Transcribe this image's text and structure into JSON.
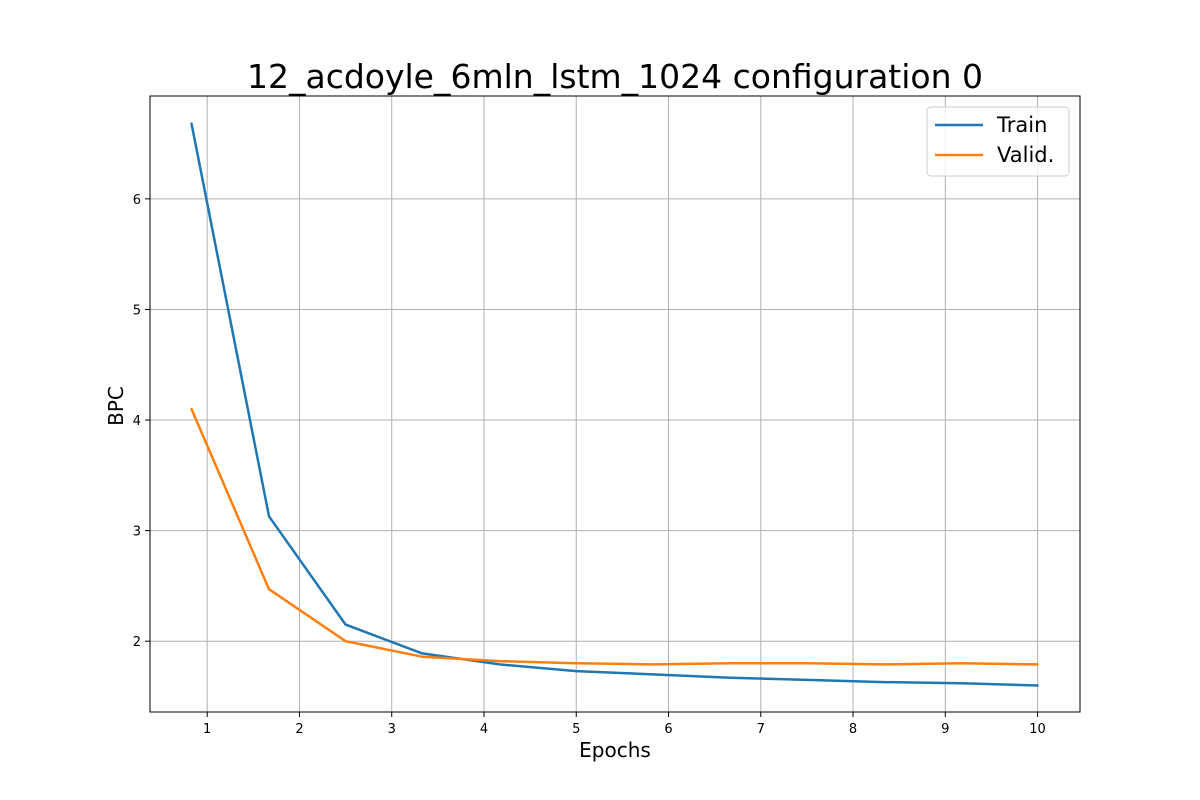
{
  "chart_data": {
    "type": "line",
    "title": "12_acdoyle_6mln_lstm_1024 configuration 0",
    "xlabel": "Epochs",
    "ylabel": "BPC",
    "xlim": [
      0.38,
      10.46
    ],
    "ylim": [
      1.36,
      6.93
    ],
    "xticks": [
      1,
      2,
      3,
      4,
      5,
      6,
      7,
      8,
      9,
      10
    ],
    "yticks": [
      2,
      3,
      4,
      5,
      6
    ],
    "grid": true,
    "legend_position": "top-right",
    "series": [
      {
        "name": "Train",
        "color": "#1f77b4",
        "x": [
          0.83,
          1.67,
          2.5,
          3.33,
          4.17,
          5.0,
          5.83,
          6.67,
          7.5,
          8.33,
          9.17,
          10.0
        ],
        "y": [
          6.68,
          3.13,
          2.15,
          1.89,
          1.79,
          1.73,
          1.7,
          1.67,
          1.65,
          1.63,
          1.62,
          1.6
        ]
      },
      {
        "name": "Valid.",
        "color": "#ff7f0e",
        "x": [
          0.83,
          1.67,
          2.5,
          3.33,
          4.17,
          5.0,
          5.83,
          6.67,
          7.5,
          8.33,
          9.17,
          10.0
        ],
        "y": [
          4.1,
          2.47,
          2.0,
          1.86,
          1.82,
          1.8,
          1.79,
          1.8,
          1.8,
          1.79,
          1.8,
          1.79
        ]
      }
    ]
  }
}
